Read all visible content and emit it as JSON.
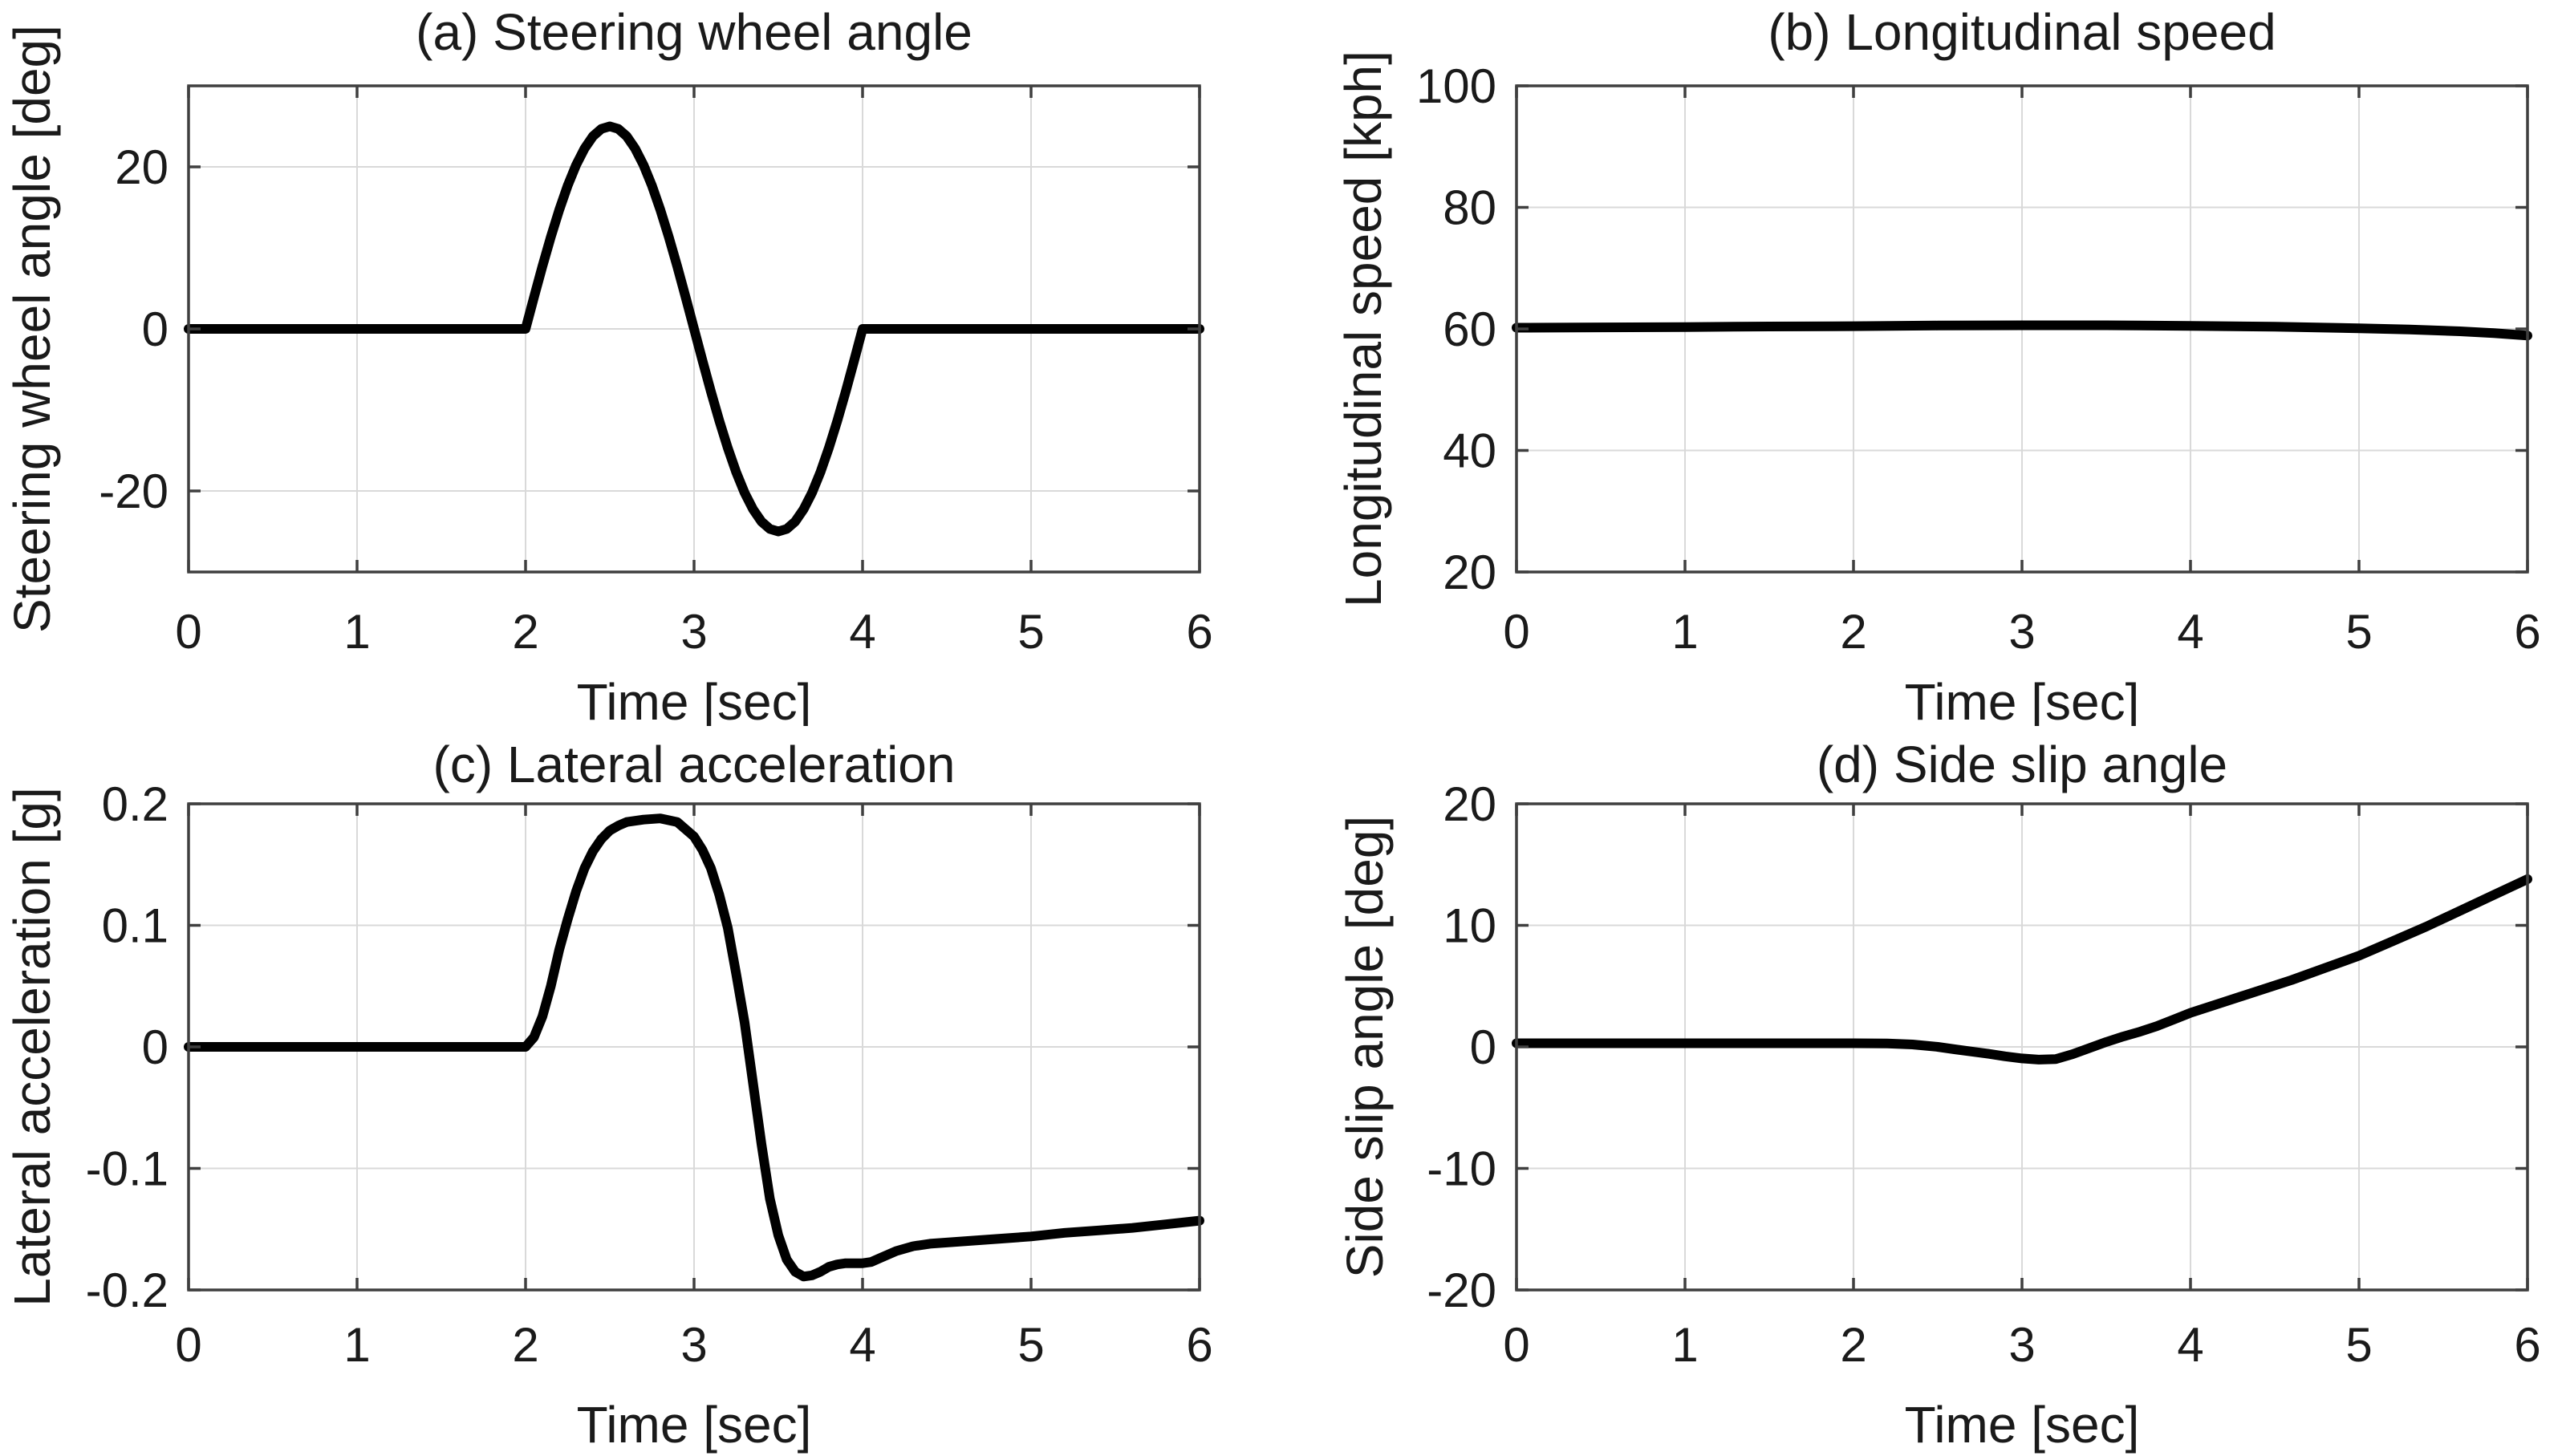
{
  "figure": {
    "background": "#ffffff",
    "text_color": "#1a1a1a",
    "axis_color": "#3f3f3f",
    "grid_color": "#d9d9d9",
    "line_color": "#000000"
  },
  "chart_data": [
    {
      "id": "a",
      "type": "line",
      "title": "(a) Steering wheel angle",
      "xlabel": "Time [sec]",
      "ylabel": "Steering wheel angle [deg]",
      "xlim": [
        0,
        6
      ],
      "ylim": [
        -30,
        30
      ],
      "xticks": [
        0,
        1,
        2,
        3,
        4,
        5,
        6
      ],
      "yticks": [
        -20,
        0,
        20
      ],
      "grid": true,
      "legend": null,
      "points": [
        [
          0,
          0
        ],
        [
          0.5,
          0
        ],
        [
          1,
          0
        ],
        [
          1.5,
          0
        ],
        [
          2,
          0
        ],
        [
          2.05,
          3.91
        ],
        [
          2.1,
          7.73
        ],
        [
          2.15,
          11.35
        ],
        [
          2.2,
          14.69
        ],
        [
          2.25,
          17.68
        ],
        [
          2.3,
          20.23
        ],
        [
          2.35,
          22.27
        ],
        [
          2.4,
          23.78
        ],
        [
          2.45,
          24.69
        ],
        [
          2.5,
          25
        ],
        [
          2.55,
          24.69
        ],
        [
          2.6,
          23.78
        ],
        [
          2.65,
          22.27
        ],
        [
          2.7,
          20.23
        ],
        [
          2.75,
          17.68
        ],
        [
          2.8,
          14.69
        ],
        [
          2.85,
          11.35
        ],
        [
          2.9,
          7.73
        ],
        [
          2.95,
          3.91
        ],
        [
          3,
          0
        ],
        [
          3.05,
          -3.91
        ],
        [
          3.1,
          -7.73
        ],
        [
          3.15,
          -11.35
        ],
        [
          3.2,
          -14.69
        ],
        [
          3.25,
          -17.68
        ],
        [
          3.3,
          -20.23
        ],
        [
          3.35,
          -22.27
        ],
        [
          3.4,
          -23.78
        ],
        [
          3.45,
          -24.69
        ],
        [
          3.5,
          -25
        ],
        [
          3.55,
          -24.69
        ],
        [
          3.6,
          -23.78
        ],
        [
          3.65,
          -22.27
        ],
        [
          3.7,
          -20.23
        ],
        [
          3.75,
          -17.68
        ],
        [
          3.8,
          -14.69
        ],
        [
          3.85,
          -11.35
        ],
        [
          3.9,
          -7.73
        ],
        [
          3.95,
          -3.91
        ],
        [
          4,
          0
        ],
        [
          4.5,
          0
        ],
        [
          5,
          0
        ],
        [
          5.5,
          0
        ],
        [
          6,
          0
        ]
      ]
    },
    {
      "id": "b",
      "type": "line",
      "title": "(b) Longitudinal speed",
      "xlabel": "Time [sec]",
      "ylabel": "Longitudinal speed [kph]",
      "xlim": [
        0,
        6
      ],
      "ylim": [
        20,
        100
      ],
      "xticks": [
        0,
        1,
        2,
        3,
        4,
        5,
        6
      ],
      "yticks": [
        20,
        40,
        60,
        80,
        100
      ],
      "grid": true,
      "legend": null,
      "points": [
        [
          0,
          60.2
        ],
        [
          0.5,
          60.25
        ],
        [
          1,
          60.3
        ],
        [
          1.5,
          60.4
        ],
        [
          2,
          60.45
        ],
        [
          2.5,
          60.55
        ],
        [
          3,
          60.6
        ],
        [
          3.5,
          60.6
        ],
        [
          4,
          60.5
        ],
        [
          4.5,
          60.35
        ],
        [
          5,
          60.1
        ],
        [
          5.3,
          59.9
        ],
        [
          5.6,
          59.6
        ],
        [
          5.8,
          59.3
        ],
        [
          6,
          58.9
        ]
      ]
    },
    {
      "id": "c",
      "type": "line",
      "title": "(c) Lateral acceleration",
      "xlabel": "Time [sec]",
      "ylabel": "Lateral acceleration [g]",
      "xlim": [
        0,
        6
      ],
      "ylim": [
        -0.2,
        0.2
      ],
      "xticks": [
        0,
        1,
        2,
        3,
        4,
        5,
        6
      ],
      "yticks": [
        -0.2,
        -0.1,
        0,
        0.1,
        0.2
      ],
      "grid": true,
      "legend": null,
      "points": [
        [
          0,
          0
        ],
        [
          0.5,
          0
        ],
        [
          1,
          0
        ],
        [
          1.5,
          0
        ],
        [
          2,
          0
        ],
        [
          2.05,
          0.008
        ],
        [
          2.1,
          0.025
        ],
        [
          2.15,
          0.05
        ],
        [
          2.2,
          0.08
        ],
        [
          2.25,
          0.105
        ],
        [
          2.3,
          0.128
        ],
        [
          2.35,
          0.147
        ],
        [
          2.4,
          0.161
        ],
        [
          2.45,
          0.171
        ],
        [
          2.5,
          0.178
        ],
        [
          2.55,
          0.182
        ],
        [
          2.6,
          0.185
        ],
        [
          2.7,
          0.187
        ],
        [
          2.8,
          0.188
        ],
        [
          2.9,
          0.185
        ],
        [
          3,
          0.173
        ],
        [
          3.05,
          0.162
        ],
        [
          3.1,
          0.147
        ],
        [
          3.15,
          0.125
        ],
        [
          3.2,
          0.098
        ],
        [
          3.25,
          0.06
        ],
        [
          3.3,
          0.02
        ],
        [
          3.35,
          -0.03
        ],
        [
          3.4,
          -0.08
        ],
        [
          3.45,
          -0.125
        ],
        [
          3.5,
          -0.155
        ],
        [
          3.55,
          -0.175
        ],
        [
          3.6,
          -0.185
        ],
        [
          3.65,
          -0.189
        ],
        [
          3.7,
          -0.188
        ],
        [
          3.75,
          -0.185
        ],
        [
          3.8,
          -0.181
        ],
        [
          3.85,
          -0.179
        ],
        [
          3.9,
          -0.178
        ],
        [
          4,
          -0.178
        ],
        [
          4.05,
          -0.177
        ],
        [
          4.1,
          -0.174
        ],
        [
          4.2,
          -0.168
        ],
        [
          4.3,
          -0.164
        ],
        [
          4.4,
          -0.162
        ],
        [
          4.6,
          -0.16
        ],
        [
          4.8,
          -0.158
        ],
        [
          5,
          -0.156
        ],
        [
          5.2,
          -0.153
        ],
        [
          5.4,
          -0.151
        ],
        [
          5.6,
          -0.149
        ],
        [
          5.8,
          -0.146
        ],
        [
          6,
          -0.143
        ]
      ]
    },
    {
      "id": "d",
      "type": "line",
      "title": "(d) Side slip angle",
      "xlabel": "Time [sec]",
      "ylabel": "Side slip angle [deg]",
      "xlim": [
        0,
        6
      ],
      "ylim": [
        -20,
        20
      ],
      "xticks": [
        0,
        1,
        2,
        3,
        4,
        5,
        6
      ],
      "yticks": [
        -20,
        -10,
        0,
        10,
        20
      ],
      "grid": true,
      "legend": null,
      "points": [
        [
          0,
          0.3
        ],
        [
          0.5,
          0.3
        ],
        [
          1,
          0.3
        ],
        [
          1.5,
          0.3
        ],
        [
          2,
          0.3
        ],
        [
          2.2,
          0.28
        ],
        [
          2.35,
          0.2
        ],
        [
          2.5,
          0
        ],
        [
          2.6,
          -0.2
        ],
        [
          2.7,
          -0.38
        ],
        [
          2.8,
          -0.57
        ],
        [
          2.9,
          -0.78
        ],
        [
          3,
          -0.95
        ],
        [
          3.1,
          -1.05
        ],
        [
          3.2,
          -1
        ],
        [
          3.3,
          -0.6
        ],
        [
          3.4,
          -0.1
        ],
        [
          3.5,
          0.4
        ],
        [
          3.6,
          0.85
        ],
        [
          3.7,
          1.25
        ],
        [
          3.8,
          1.7
        ],
        [
          3.9,
          2.25
        ],
        [
          4,
          2.8
        ],
        [
          4.2,
          3.7
        ],
        [
          4.4,
          4.6
        ],
        [
          4.6,
          5.5
        ],
        [
          4.8,
          6.5
        ],
        [
          5,
          7.5
        ],
        [
          5.2,
          8.7
        ],
        [
          5.4,
          9.9
        ],
        [
          5.6,
          11.2
        ],
        [
          5.8,
          12.5
        ],
        [
          6,
          13.8
        ]
      ]
    }
  ]
}
